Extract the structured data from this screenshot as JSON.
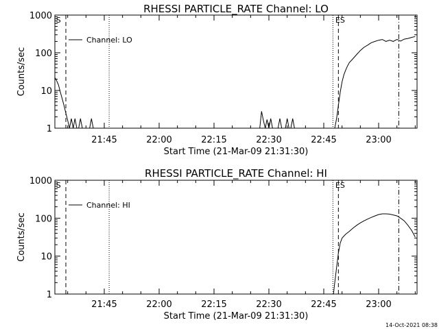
{
  "footer_timestamp": "14-Oct-2021 08:38",
  "chart_data": [
    {
      "type": "line",
      "title": "RHESSI PARTICLE_RATE Channel: LO",
      "xlabel": "Start Time (21-Mar-09 21:31:30)",
      "ylabel": "Counts/sec",
      "yscale": "log",
      "ylim": [
        1,
        1000
      ],
      "xlim": [
        "21:31:30",
        "23:10:30"
      ],
      "xticks": [
        "21:45",
        "22:00",
        "22:15",
        "22:30",
        "22:45",
        "23:00"
      ],
      "yticks": [
        "1",
        "10",
        "100",
        "1000"
      ],
      "legend": "Channel: LO",
      "series": [
        {
          "name": "Channel: LO",
          "x": [
            "21:31:30",
            "21:32:00",
            "21:32:30",
            "21:33:00",
            "21:33:30",
            "21:34:00",
            "21:34:30",
            "21:35:00",
            "21:35:30",
            "21:36:00",
            "21:36:30",
            "21:37:00",
            "21:37:30",
            "21:38:00",
            "21:38:30",
            "21:39:00",
            "21:39:30",
            "21:40:00",
            "21:40:30",
            "21:41:00",
            "21:41:30",
            "21:42:00",
            "22:27:00",
            "22:27:30",
            "22:28:00",
            "22:28:30",
            "22:29:00",
            "22:29:30",
            "22:30:00",
            "22:30:30",
            "22:31:00",
            "22:31:30",
            "22:32:00",
            "22:32:30",
            "22:33:00",
            "22:33:30",
            "22:34:00",
            "22:34:30",
            "22:35:00",
            "22:35:30",
            "22:36:00",
            "22:36:30",
            "22:37:00",
            "22:48:00",
            "22:48:30",
            "22:49:00",
            "22:49:30",
            "22:50:00",
            "22:50:30",
            "22:51:00",
            "22:51:30",
            "22:52:00",
            "22:53:00",
            "22:54:00",
            "22:55:00",
            "22:56:00",
            "22:57:00",
            "22:58:00",
            "22:59:00",
            "23:00:00",
            "23:01:00",
            "23:02:00",
            "23:03:00",
            "23:04:00",
            "23:05:00",
            "23:06:00",
            "23:07:00",
            "23:08:00",
            "23:09:00",
            "23:10:00"
          ],
          "y": [
            22,
            18,
            14,
            9,
            6,
            4,
            2.5,
            1.6,
            1,
            1.8,
            1,
            1.8,
            1,
            1,
            1.8,
            1,
            1,
            1,
            1,
            1,
            1.8,
            1,
            1,
            1,
            2.8,
            1.6,
            1,
            1.7,
            1,
            1.8,
            1,
            1,
            1,
            1,
            1.8,
            1,
            1,
            1,
            1.8,
            1,
            1,
            1.8,
            1,
            1,
            1.8,
            4,
            9,
            17,
            26,
            35,
            45,
            55,
            70,
            90,
            115,
            140,
            160,
            185,
            200,
            215,
            225,
            200,
            215,
            200,
            225,
            205,
            230,
            240,
            255,
            270
          ]
        }
      ],
      "annotations": [
        {
          "text": "S",
          "x": "21:31:50"
        },
        {
          "text": "ES",
          "x": "22:48:10"
        }
      ],
      "vlines": [
        {
          "x": "21:34:30",
          "style": "dashed"
        },
        {
          "x": "21:46:20",
          "style": "dotted"
        },
        {
          "x": "22:47:30",
          "style": "dotted"
        },
        {
          "x": "22:49:00",
          "style": "dashed"
        },
        {
          "x": "23:05:30",
          "style": "dashdot"
        }
      ]
    },
    {
      "type": "line",
      "title": "RHESSI PARTICLE_RATE Channel: HI",
      "xlabel": "Start Time (21-Mar-09 21:31:30)",
      "ylabel": "Counts/sec",
      "yscale": "log",
      "ylim": [
        1,
        1000
      ],
      "xlim": [
        "21:31:30",
        "23:10:30"
      ],
      "xticks": [
        "21:45",
        "22:00",
        "22:15",
        "22:30",
        "22:45",
        "23:00"
      ],
      "yticks": [
        "1",
        "10",
        "100",
        "1000"
      ],
      "legend": "Channel: HI",
      "series": [
        {
          "name": "Channel: HI",
          "x": [
            "22:47:40",
            "22:48:00",
            "22:48:30",
            "22:49:00",
            "22:49:30",
            "22:50:00",
            "22:51:00",
            "22:52:00",
            "22:53:00",
            "22:54:00",
            "22:55:00",
            "22:56:00",
            "22:57:00",
            "22:58:00",
            "22:59:00",
            "23:00:00",
            "23:01:00",
            "23:02:00",
            "23:03:00",
            "23:04:00",
            "23:05:00",
            "23:06:00",
            "23:07:00",
            "23:08:00",
            "23:09:00",
            "23:10:00"
          ],
          "y": [
            1,
            2,
            5,
            12,
            22,
            30,
            38,
            45,
            55,
            65,
            75,
            85,
            95,
            105,
            115,
            125,
            130,
            130,
            128,
            122,
            115,
            100,
            85,
            65,
            48,
            32
          ]
        }
      ],
      "annotations": [
        {
          "text": "S",
          "x": "21:31:50"
        },
        {
          "text": "ES",
          "x": "22:48:10"
        }
      ],
      "vlines": [
        {
          "x": "21:34:30",
          "style": "dashed"
        },
        {
          "x": "21:46:20",
          "style": "dotted"
        },
        {
          "x": "22:47:30",
          "style": "dotted"
        },
        {
          "x": "22:49:00",
          "style": "dashed"
        },
        {
          "x": "23:05:30",
          "style": "dashdot"
        }
      ]
    }
  ]
}
